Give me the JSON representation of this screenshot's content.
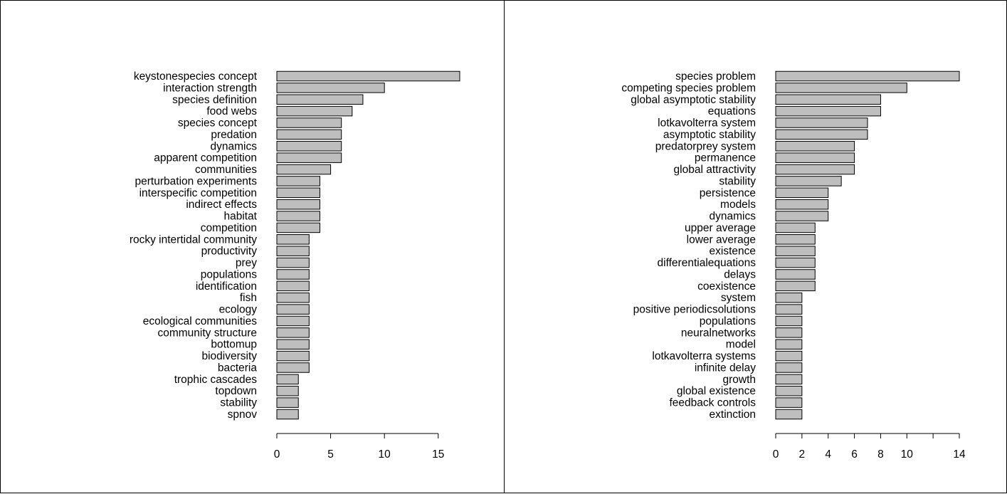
{
  "chart_data": [
    {
      "type": "bar",
      "orientation": "horizontal",
      "title": "",
      "xlabel": "",
      "ylabel": "",
      "xlim": [
        0,
        17
      ],
      "xticks": [
        0,
        5,
        10,
        15
      ],
      "xtick_labels": [
        "0",
        "5",
        "10",
        "15"
      ],
      "categories": [
        "keystonespecies concept",
        "interaction strength",
        "species definition",
        "food webs",
        "species concept",
        "predation",
        "dynamics",
        "apparent competition",
        "communities",
        "perturbation experiments",
        "interspecific competition",
        "indirect effects",
        "habitat",
        "competition",
        "rocky intertidal community",
        "productivity",
        "prey",
        "populations",
        "identification",
        "fish",
        "ecology",
        "ecological communities",
        "community structure",
        "bottomup",
        "biodiversity",
        "bacteria",
        "trophic cascades",
        "topdown",
        "stability",
        "spnov"
      ],
      "values": [
        17,
        10,
        8,
        7,
        6,
        6,
        6,
        6,
        5,
        4,
        4,
        4,
        4,
        4,
        3,
        3,
        3,
        3,
        3,
        3,
        3,
        3,
        3,
        3,
        3,
        3,
        2,
        2,
        2,
        2
      ]
    },
    {
      "type": "bar",
      "orientation": "horizontal",
      "title": "",
      "xlabel": "",
      "ylabel": "",
      "xlim": [
        0,
        14
      ],
      "xticks": [
        0,
        2,
        4,
        6,
        8,
        10,
        12,
        14
      ],
      "xtick_labels": [
        "0",
        "2",
        "4",
        "6",
        "8",
        "10",
        "",
        "14"
      ],
      "categories": [
        "species problem",
        "competing species problem",
        "global asymptotic stability",
        "equations",
        "lotkavolterra system",
        "asymptotic stability",
        "predatorprey system",
        "permanence",
        "global attractivity",
        "stability",
        "persistence",
        "models",
        "dynamics",
        "upper average",
        "lower average",
        "existence",
        "differentialequations",
        "delays",
        "coexistence",
        "system",
        "positive periodicsolutions",
        "populations",
        "neuralnetworks",
        "model",
        "lotkavolterra systems",
        "infinite delay",
        "growth",
        "global existence",
        "feedback controls",
        "extinction"
      ],
      "values": [
        14,
        10,
        8,
        8,
        7,
        7,
        6,
        6,
        6,
        5,
        4,
        4,
        4,
        3,
        3,
        3,
        3,
        3,
        3,
        2,
        2,
        2,
        2,
        2,
        2,
        2,
        2,
        2,
        2,
        2
      ]
    }
  ]
}
